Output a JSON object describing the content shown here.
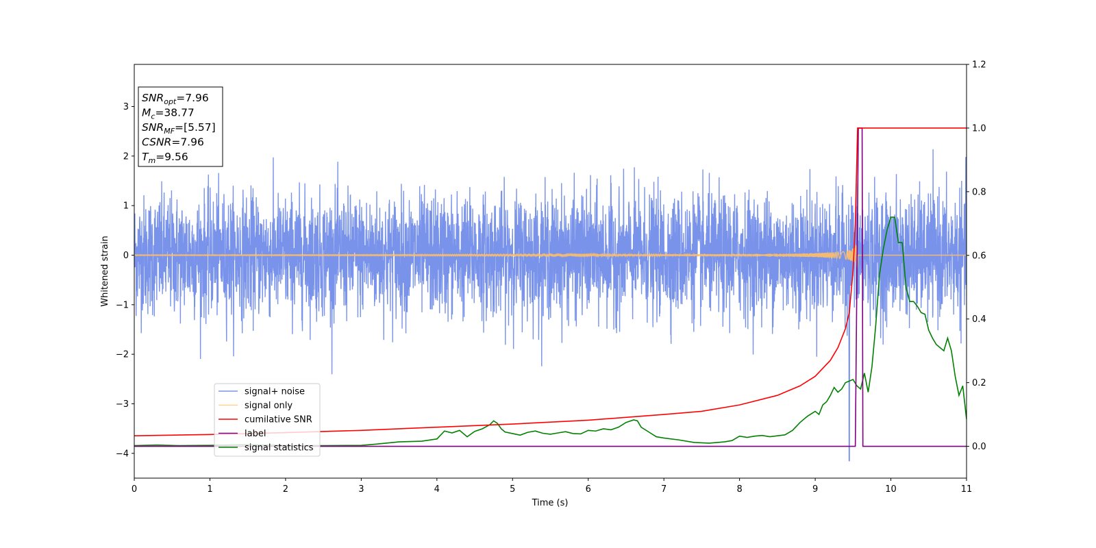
{
  "chart_data": {
    "type": "line",
    "xlabel": "Time (s)",
    "ylabel": "Whitened strain",
    "xlim": [
      0,
      11
    ],
    "ylim": [
      -4.5,
      3.85
    ],
    "y2lim": [
      -0.1,
      1.2
    ],
    "x_ticks": [
      0,
      1,
      2,
      3,
      4,
      5,
      6,
      7,
      8,
      9,
      10,
      11
    ],
    "y_ticks": [
      -4,
      -3,
      -2,
      -1,
      0,
      1,
      2,
      3
    ],
    "y2_ticks": [
      0.0,
      0.2,
      0.4,
      0.6,
      0.8,
      1.0,
      1.2
    ],
    "grid": false,
    "legend_position": "lower-left",
    "annotation": {
      "lines": [
        {
          "base": "SNR",
          "sub": "opt",
          "value": "=7.96"
        },
        {
          "base": "M",
          "sub": "c",
          "value": "=38.77"
        },
        {
          "base": "SNR",
          "sub": "MF",
          "value": "=[5.57]"
        },
        {
          "base": "CSNR",
          "sub": "",
          "value": "=7.96"
        },
        {
          "base": "T",
          "sub": "m",
          "value": "=9.56"
        }
      ]
    },
    "series": [
      {
        "name": "signal+ noise",
        "color": "#5b7be6",
        "axis": "left",
        "description_values": {
          "noise_std": 0.6,
          "duration": 11,
          "dip_at": 9.45,
          "dip_value": -4.15
        }
      },
      {
        "name": "signal only",
        "color": "#ffbf66",
        "axis": "left",
        "chirp": {
          "t_merge": 9.56,
          "max_amplitude": 1.2
        }
      },
      {
        "name": "cumilative SNR",
        "color": "#ff0000",
        "axis": "right",
        "x": [
          0,
          1,
          2,
          3,
          4,
          5,
          6,
          7,
          7.5,
          8,
          8.5,
          8.8,
          9.0,
          9.2,
          9.3,
          9.4,
          9.45,
          9.5,
          9.53,
          9.56,
          9.57,
          11
        ],
        "y": [
          0.033,
          0.037,
          0.043,
          0.05,
          0.06,
          0.07,
          0.082,
          0.1,
          0.11,
          0.13,
          0.16,
          0.19,
          0.22,
          0.27,
          0.31,
          0.37,
          0.42,
          0.55,
          0.7,
          1.0,
          1.0,
          1.0
        ]
      },
      {
        "name": "label",
        "color": "#800080",
        "axis": "right",
        "x": [
          0,
          9.53,
          9.57,
          9.62,
          9.63,
          11
        ],
        "y": [
          0,
          0,
          1.0,
          1.0,
          0,
          0
        ]
      },
      {
        "name": "signal statistics",
        "color": "#008000",
        "axis": "right",
        "x": [
          0,
          0.3,
          0.6,
          1.0,
          1.5,
          2.0,
          2.5,
          3.0,
          3.2,
          3.5,
          3.8,
          4.0,
          4.1,
          4.2,
          4.3,
          4.4,
          4.5,
          4.6,
          4.7,
          4.75,
          4.8,
          4.85,
          4.9,
          5.0,
          5.1,
          5.2,
          5.3,
          5.4,
          5.5,
          5.6,
          5.7,
          5.8,
          5.9,
          6.0,
          6.1,
          6.2,
          6.3,
          6.4,
          6.5,
          6.6,
          6.65,
          6.7,
          6.8,
          6.9,
          7.0,
          7.2,
          7.4,
          7.6,
          7.8,
          7.9,
          8.0,
          8.1,
          8.2,
          8.3,
          8.4,
          8.5,
          8.6,
          8.7,
          8.8,
          8.9,
          9.0,
          9.05,
          9.1,
          9.15,
          9.2,
          9.25,
          9.3,
          9.35,
          9.4,
          9.5,
          9.55,
          9.6,
          9.65,
          9.7,
          9.75,
          9.8,
          9.85,
          9.9,
          9.95,
          10.0,
          10.05,
          10.1,
          10.15,
          10.2,
          10.25,
          10.3,
          10.35,
          10.4,
          10.45,
          10.5,
          10.55,
          10.6,
          10.7,
          10.75,
          10.8,
          10.85,
          10.9,
          10.95,
          11.0
        ],
        "y": [
          0.002,
          0.004,
          0.002,
          0.003,
          0.005,
          0.003,
          0.002,
          0.003,
          0.007,
          0.014,
          0.016,
          0.023,
          0.048,
          0.042,
          0.05,
          0.03,
          0.047,
          0.055,
          0.068,
          0.08,
          0.072,
          0.055,
          0.045,
          0.04,
          0.035,
          0.044,
          0.048,
          0.041,
          0.038,
          0.042,
          0.046,
          0.04,
          0.039,
          0.05,
          0.048,
          0.055,
          0.052,
          0.06,
          0.075,
          0.083,
          0.08,
          0.06,
          0.045,
          0.03,
          0.026,
          0.02,
          0.012,
          0.01,
          0.014,
          0.018,
          0.032,
          0.028,
          0.032,
          0.034,
          0.03,
          0.033,
          0.036,
          0.05,
          0.075,
          0.095,
          0.11,
          0.1,
          0.13,
          0.14,
          0.16,
          0.185,
          0.17,
          0.18,
          0.2,
          0.21,
          0.19,
          0.18,
          0.23,
          0.17,
          0.25,
          0.38,
          0.54,
          0.62,
          0.68,
          0.72,
          0.72,
          0.64,
          0.64,
          0.5,
          0.455,
          0.455,
          0.44,
          0.42,
          0.415,
          0.365,
          0.34,
          0.32,
          0.3,
          0.34,
          0.3,
          0.22,
          0.16,
          0.19,
          0.085
        ]
      }
    ]
  }
}
